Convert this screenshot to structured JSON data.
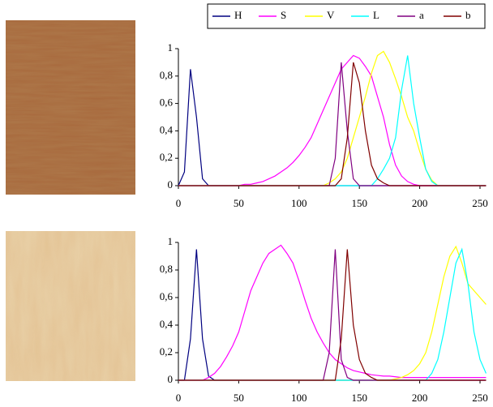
{
  "chart_data": [
    {
      "type": "line",
      "legend": true,
      "x": [
        0,
        5,
        10,
        15,
        20,
        25,
        30,
        35,
        40,
        45,
        50,
        55,
        60,
        65,
        70,
        75,
        80,
        85,
        90,
        95,
        100,
        105,
        110,
        115,
        120,
        125,
        130,
        135,
        140,
        145,
        150,
        155,
        160,
        165,
        170,
        175,
        180,
        185,
        190,
        195,
        200,
        205,
        210,
        215,
        220,
        225,
        230,
        235,
        240,
        245,
        250,
        255
      ],
      "xlim": [
        0,
        255
      ],
      "xticks": [
        0,
        50,
        100,
        150,
        200,
        250
      ],
      "ylim": [
        0,
        1
      ],
      "yticks": [
        0,
        {
          "value": 0.2,
          "label": "0,2"
        },
        {
          "value": 0.4,
          "label": "0,4"
        },
        {
          "value": 0.6,
          "label": "0,6"
        },
        {
          "value": 0.8,
          "label": "0,8"
        },
        1
      ],
      "series": [
        {
          "name": "H",
          "color": "#000080",
          "values": [
            0,
            0.1,
            0.85,
            0.5,
            0.05,
            0,
            0,
            0,
            0,
            0,
            0,
            0,
            0,
            0,
            0,
            0,
            0,
            0,
            0,
            0,
            0,
            0,
            0,
            0,
            0,
            0,
            0,
            0,
            0,
            0,
            0,
            0,
            0,
            0,
            0,
            0,
            0,
            0,
            0,
            0,
            0,
            0,
            0,
            0,
            0,
            0,
            0,
            0,
            0,
            0,
            0,
            0
          ]
        },
        {
          "name": "S",
          "color": "#ff00ff",
          "values": [
            0,
            0,
            0,
            0,
            0,
            0,
            0,
            0,
            0,
            0,
            0,
            0.01,
            0.01,
            0.02,
            0.03,
            0.05,
            0.07,
            0.1,
            0.13,
            0.17,
            0.22,
            0.28,
            0.35,
            0.45,
            0.55,
            0.65,
            0.75,
            0.85,
            0.9,
            0.95,
            0.93,
            0.87,
            0.8,
            0.65,
            0.5,
            0.3,
            0.15,
            0.07,
            0.03,
            0.01,
            0,
            0,
            0,
            0,
            0,
            0,
            0,
            0,
            0,
            0,
            0,
            0
          ]
        },
        {
          "name": "V",
          "color": "#ffff00",
          "values": [
            0,
            0,
            0,
            0,
            0,
            0,
            0,
            0,
            0,
            0,
            0,
            0,
            0,
            0,
            0,
            0,
            0,
            0,
            0,
            0,
            0,
            0,
            0,
            0,
            0,
            0.02,
            0.05,
            0.1,
            0.2,
            0.35,
            0.5,
            0.65,
            0.82,
            0.95,
            0.98,
            0.9,
            0.78,
            0.65,
            0.5,
            0.4,
            0.25,
            0.12,
            0.04,
            0,
            0,
            0,
            0,
            0,
            0,
            0,
            0,
            0
          ]
        },
        {
          "name": "L",
          "color": "#00ffff",
          "values": [
            0,
            0,
            0,
            0,
            0,
            0,
            0,
            0,
            0,
            0,
            0,
            0,
            0,
            0,
            0,
            0,
            0,
            0,
            0,
            0,
            0,
            0,
            0,
            0,
            0,
            0,
            0,
            0,
            0,
            0,
            0,
            0,
            0,
            0.05,
            0.12,
            0.2,
            0.35,
            0.7,
            0.95,
            0.6,
            0.35,
            0.12,
            0.03,
            0,
            0,
            0,
            0,
            0,
            0,
            0,
            0,
            0
          ]
        },
        {
          "name": "a",
          "color": "#800080",
          "values": [
            0,
            0,
            0,
            0,
            0,
            0,
            0,
            0,
            0,
            0,
            0,
            0,
            0,
            0,
            0,
            0,
            0,
            0,
            0,
            0,
            0,
            0,
            0,
            0,
            0,
            0,
            0.2,
            0.9,
            0.4,
            0.05,
            0,
            0,
            0,
            0,
            0,
            0,
            0,
            0,
            0,
            0,
            0,
            0,
            0,
            0,
            0,
            0,
            0,
            0,
            0,
            0,
            0,
            0
          ]
        },
        {
          "name": "b",
          "color": "#800000",
          "values": [
            0,
            0,
            0,
            0,
            0,
            0,
            0,
            0,
            0,
            0,
            0,
            0,
            0,
            0,
            0,
            0,
            0,
            0,
            0,
            0,
            0,
            0,
            0,
            0,
            0,
            0,
            0,
            0.05,
            0.35,
            0.9,
            0.75,
            0.4,
            0.15,
            0.05,
            0.02,
            0,
            0,
            0,
            0,
            0,
            0,
            0,
            0,
            0,
            0,
            0,
            0,
            0,
            0,
            0,
            0,
            0
          ]
        }
      ]
    },
    {
      "type": "line",
      "legend": false,
      "x": [
        0,
        5,
        10,
        15,
        20,
        25,
        30,
        35,
        40,
        45,
        50,
        55,
        60,
        65,
        70,
        75,
        80,
        85,
        90,
        95,
        100,
        105,
        110,
        115,
        120,
        125,
        130,
        135,
        140,
        145,
        150,
        155,
        160,
        165,
        170,
        175,
        180,
        185,
        190,
        195,
        200,
        205,
        210,
        215,
        220,
        225,
        230,
        235,
        240,
        245,
        250,
        255
      ],
      "xlim": [
        0,
        255
      ],
      "xticks": [
        0,
        50,
        100,
        150,
        200,
        250
      ],
      "ylim": [
        0,
        1
      ],
      "yticks": [
        0,
        {
          "value": 0.2,
          "label": "0,2"
        },
        {
          "value": 0.4,
          "label": "0,4"
        },
        {
          "value": 0.6,
          "label": "0,6"
        },
        {
          "value": 0.8,
          "label": "0,8"
        },
        1
      ],
      "series": [
        {
          "color": "#000080",
          "values": [
            0,
            0,
            0.3,
            0.95,
            0.3,
            0.03,
            0,
            0,
            0,
            0,
            0,
            0,
            0,
            0,
            0,
            0,
            0,
            0,
            0,
            0,
            0,
            0,
            0,
            0,
            0,
            0,
            0,
            0,
            0,
            0,
            0,
            0,
            0,
            0,
            0,
            0,
            0,
            0,
            0,
            0,
            0,
            0,
            0,
            0,
            0,
            0,
            0,
            0,
            0,
            0,
            0,
            0
          ]
        },
        {
          "color": "#ff00ff",
          "values": [
            0,
            0,
            0,
            0,
            0,
            0.02,
            0.05,
            0.1,
            0.17,
            0.25,
            0.35,
            0.5,
            0.65,
            0.75,
            0.85,
            0.92,
            0.95,
            0.98,
            0.92,
            0.85,
            0.72,
            0.58,
            0.45,
            0.35,
            0.27,
            0.2,
            0.15,
            0.12,
            0.09,
            0.07,
            0.06,
            0.05,
            0.04,
            0.035,
            0.03,
            0.03,
            0.025,
            0.02,
            0.02,
            0.02,
            0.02,
            0.02,
            0.02,
            0.02,
            0.02,
            0.02,
            0.02,
            0.02,
            0.02,
            0.02,
            0.02,
            0.02
          ]
        },
        {
          "color": "#ffff00",
          "values": [
            0,
            0,
            0,
            0,
            0,
            0,
            0,
            0,
            0,
            0,
            0,
            0,
            0,
            0,
            0,
            0,
            0,
            0,
            0,
            0,
            0,
            0,
            0,
            0,
            0,
            0,
            0,
            0,
            0,
            0,
            0,
            0,
            0,
            0,
            0,
            0,
            0.01,
            0.02,
            0.04,
            0.07,
            0.12,
            0.2,
            0.35,
            0.55,
            0.75,
            0.9,
            0.97,
            0.85,
            0.7,
            0.65,
            0.6,
            0.55
          ]
        },
        {
          "color": "#00ffff",
          "values": [
            0,
            0,
            0,
            0,
            0,
            0,
            0,
            0,
            0,
            0,
            0,
            0,
            0,
            0,
            0,
            0,
            0,
            0,
            0,
            0,
            0,
            0,
            0,
            0,
            0,
            0,
            0,
            0,
            0,
            0,
            0,
            0,
            0,
            0,
            0,
            0,
            0,
            0,
            0,
            0,
            0,
            0,
            0.05,
            0.15,
            0.35,
            0.6,
            0.85,
            0.95,
            0.7,
            0.35,
            0.15,
            0.05
          ]
        },
        {
          "color": "#800080",
          "values": [
            0,
            0,
            0,
            0,
            0,
            0,
            0,
            0,
            0,
            0,
            0,
            0,
            0,
            0,
            0,
            0,
            0,
            0,
            0,
            0,
            0,
            0,
            0,
            0,
            0,
            0.2,
            0.95,
            0.15,
            0.02,
            0,
            0,
            0,
            0,
            0,
            0,
            0,
            0,
            0,
            0,
            0,
            0,
            0,
            0,
            0,
            0,
            0,
            0,
            0,
            0,
            0,
            0,
            0
          ]
        },
        {
          "color": "#800000",
          "values": [
            0,
            0,
            0,
            0,
            0,
            0,
            0,
            0,
            0,
            0,
            0,
            0,
            0,
            0,
            0,
            0,
            0,
            0,
            0,
            0,
            0,
            0,
            0,
            0,
            0,
            0,
            0,
            0.3,
            0.95,
            0.4,
            0.15,
            0.05,
            0.02,
            0,
            0,
            0,
            0,
            0,
            0,
            0,
            0,
            0,
            0,
            0,
            0,
            0,
            0,
            0,
            0,
            0,
            0,
            0
          ]
        }
      ]
    }
  ]
}
